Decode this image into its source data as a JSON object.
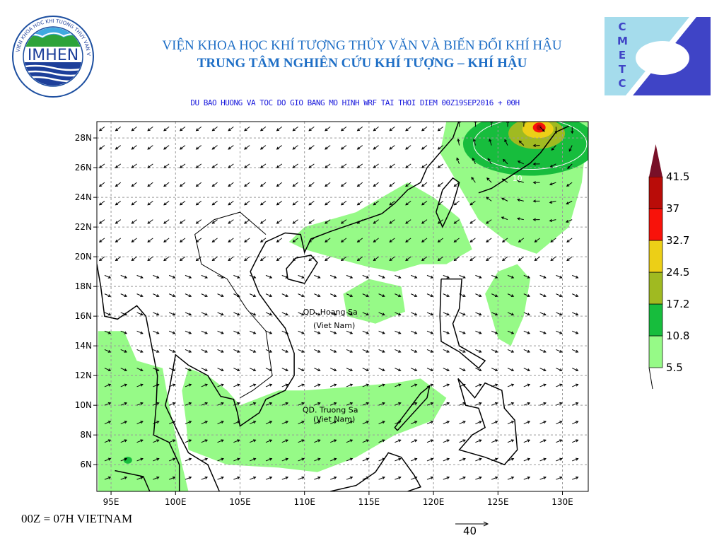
{
  "header": {
    "institute": "VIỆN KHOA HỌC KHÍ TƯỢNG THỦY VĂN VÀ BIẾN ĐỔI KHÍ HẬU",
    "center": "TRUNG TÂM NGHIÊN CỨU KHÍ TƯỢNG – KHÍ HẬU",
    "map_title": "DU BAO HUONG VA TOC DO GIO BANG MO HINH WRF TAI THOI DIEM  00Z19SEP2016 + 00H"
  },
  "logos": {
    "left": {
      "text": "IMHEN",
      "ring_text": "VIEN KHOA HOC KHI TUONG THUY VAN VA BIEN DOI KHI HAU"
    },
    "right": {
      "text": "CMETC"
    }
  },
  "map": {
    "lon_range": [
      93.9,
      132
    ],
    "lat_range": [
      4.2,
      29.1
    ],
    "x_ticks": [
      "95E",
      "100E",
      "105E",
      "110E",
      "115E",
      "120E",
      "125E",
      "130E"
    ],
    "x_tick_values": [
      95,
      100,
      105,
      110,
      115,
      120,
      125,
      130
    ],
    "y_ticks": [
      "6N",
      "8N",
      "10N",
      "12N",
      "14N",
      "16N",
      "18N",
      "20N",
      "22N",
      "24N",
      "26N",
      "28N"
    ],
    "y_tick_values": [
      6,
      8,
      10,
      12,
      14,
      16,
      18,
      20,
      22,
      24,
      26,
      28
    ],
    "grid": "dashed",
    "labels": [
      {
        "text": "QD. Hoang Sa",
        "lon": 112,
        "lat": 16.1
      },
      {
        "text": "(Viet Nam)",
        "lon": 112.3,
        "lat": 15.2
      },
      {
        "text": "QD. Truong Sa",
        "lon": 112,
        "lat": 9.5
      },
      {
        "text": "(Viet Nam)",
        "lon": 112.3,
        "lat": 8.9
      }
    ],
    "contour_label": {
      "text": "10",
      "lon": 126.5,
      "lat": 25.1
    }
  },
  "legend": {
    "levels": [
      "5.5",
      "10.8",
      "17.2",
      "24.5",
      "32.7",
      "37",
      "41.5"
    ],
    "colors": [
      "#96fa87",
      "#17bd3d",
      "#a0ba21",
      "#eccf17",
      "#f8120a",
      "#b90c08",
      "#781028"
    ]
  },
  "reference_vector": {
    "value": "40"
  },
  "footer": {
    "text": "00Z = 07H VIETNAM"
  }
}
